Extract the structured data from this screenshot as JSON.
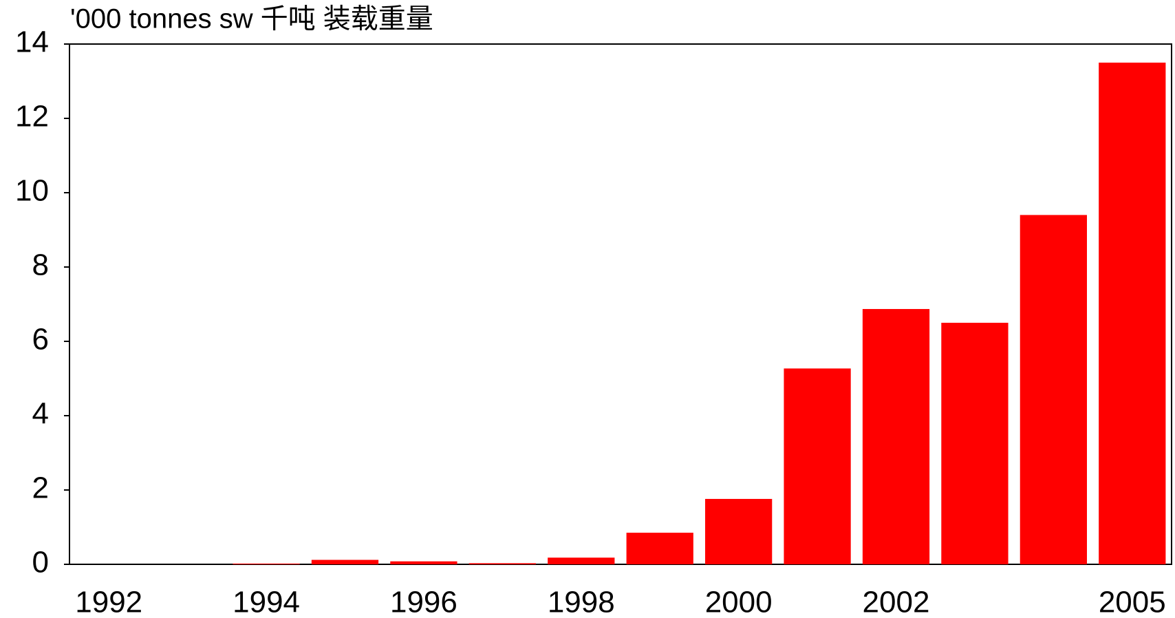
{
  "chart_data": {
    "type": "bar",
    "title": "'000 tonnes sw  千吨 装载重量",
    "categories": [
      "1992",
      null,
      "1994",
      null,
      "1996",
      null,
      "1998",
      null,
      "2000",
      null,
      "2002",
      null,
      null,
      "2005"
    ],
    "values": [
      0,
      0,
      0.02,
      0.12,
      0.08,
      0.03,
      0.18,
      0.85,
      1.76,
      5.27,
      6.87,
      6.5,
      9.4,
      13.5
    ],
    "color": "#ff0000",
    "ylim": [
      0,
      14
    ],
    "yticks": [
      0,
      2,
      4,
      6,
      8,
      10,
      12,
      14
    ],
    "grid": false
  }
}
